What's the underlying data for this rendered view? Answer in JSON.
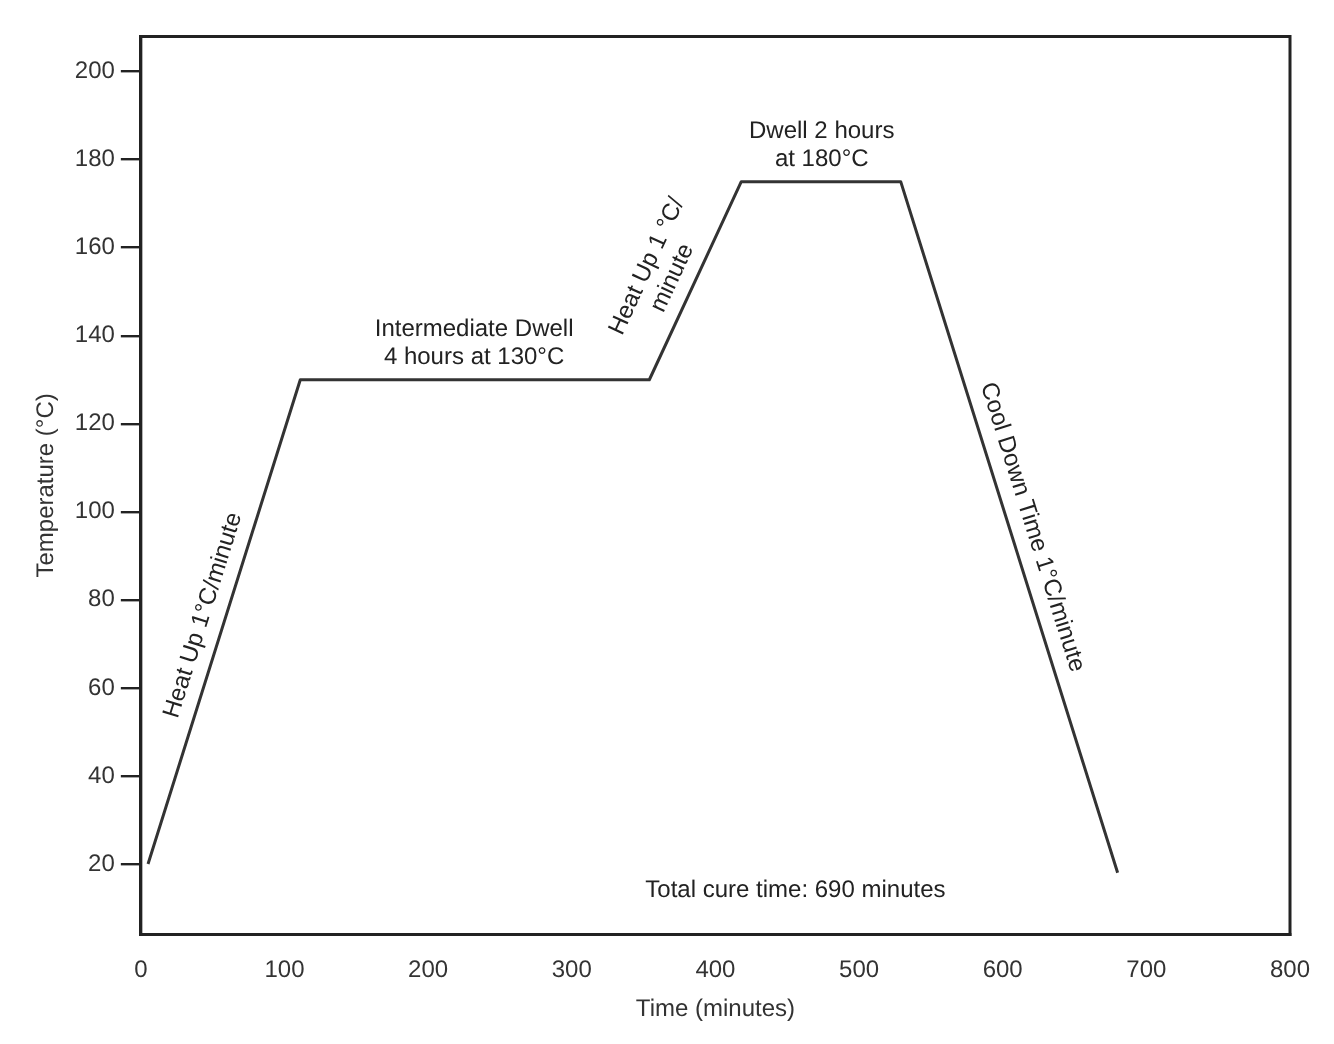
{
  "chart_data": {
    "type": "line",
    "xlabel": "Time (minutes)",
    "ylabel": "Temperature (°C)",
    "x": [
      5,
      111,
      354,
      418,
      529,
      680
    ],
    "series": [
      {
        "color": "#333333",
        "values": [
          20,
          130,
          130,
          175,
          175,
          18
        ]
      }
    ],
    "xlim": [
      0,
      800
    ],
    "xticks": [
      0,
      100,
      200,
      300,
      400,
      500,
      600,
      700,
      800
    ],
    "ylim": [
      4,
      208
    ],
    "yticks": [
      20,
      40,
      60,
      80,
      100,
      120,
      140,
      160,
      180,
      200
    ],
    "grid": false,
    "legend": false,
    "marker": "none",
    "line_style": "solid",
    "annotations": [
      {
        "text": "Heat Up 1°C/minute",
        "x": 58,
        "y": 75
      },
      {
        "text": "Intermediate Dwell\n4 hours at 130°C",
        "x": 232,
        "y": 130
      },
      {
        "text": "Heat Up 1 °C/\nminute",
        "x": 384,
        "y": 151
      },
      {
        "text": "Dwell 2 hours\nat 180°C",
        "x": 474,
        "y": 175
      },
      {
        "text": "Cool Down Time 1°C/minute",
        "x": 606,
        "y": 95
      },
      "Total cure time: 690 minutes"
    ]
  }
}
